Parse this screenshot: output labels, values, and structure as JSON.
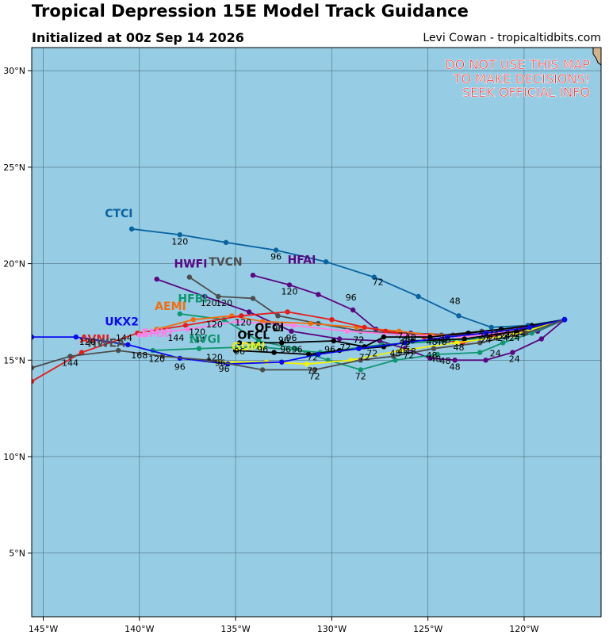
{
  "header": {
    "title": "Tropical Depression 15E Model Track Guidance",
    "subtitle": "Initialized at 00z Sep 14 2026",
    "credit": "Levi Cowan - tropicaltidbits.com"
  },
  "warning": {
    "lines": [
      "DO NOT USE THIS MAP",
      "TO MAKE DECISIONS!",
      "SEEK OFFICIAL INFO"
    ],
    "color": "#ff2222"
  },
  "axes": {
    "lon_range": [
      -145.6,
      -116.0
    ],
    "lat_range": [
      1.7,
      31.2
    ],
    "x_ticks": [
      {
        "lon": -145,
        "label": "145°W"
      },
      {
        "lon": -140,
        "label": "140°W"
      },
      {
        "lon": -135,
        "label": "135°W"
      },
      {
        "lon": -130,
        "label": "130°W"
      },
      {
        "lon": -125,
        "label": "125°W"
      },
      {
        "lon": -120,
        "label": "120°W"
      }
    ],
    "y_ticks": [
      {
        "lat": 5,
        "label": "5°N"
      },
      {
        "lat": 10,
        "label": "10°N"
      },
      {
        "lat": 15,
        "label": "15°N"
      },
      {
        "lat": 20,
        "label": "20°N"
      },
      {
        "lat": 25,
        "label": "25°N"
      },
      {
        "lat": 30,
        "label": "30°N"
      }
    ],
    "ocean_color": "#96cde4",
    "grid": true
  },
  "storm_origin": {
    "lon": -117.9,
    "lat": 17.1
  },
  "tracks": [
    {
      "name": "CTCI",
      "color": "#0a63a0",
      "points": [
        [
          -117.9,
          17.1
        ],
        [
          -119.8,
          16.8
        ],
        [
          -121.7,
          16.7
        ],
        [
          -123.4,
          17.3
        ],
        [
          -125.5,
          18.3
        ],
        [
          -127.8,
          19.3
        ],
        [
          -130.3,
          20.1
        ],
        [
          -132.9,
          20.7
        ],
        [
          -135.5,
          21.1
        ],
        [
          -137.9,
          21.5
        ],
        [
          -140.4,
          21.8
        ]
      ],
      "labels": [
        {
          "lon": -123.6,
          "lat": 17.9,
          "text": "48"
        },
        {
          "lon": -127.6,
          "lat": 18.9,
          "text": "72"
        },
        {
          "lon": -132.9,
          "lat": 20.2,
          "text": "96"
        },
        {
          "lon": -137.9,
          "lat": 21.0,
          "text": "120"
        }
      ],
      "name_pos": [
        -141.8,
        22.4
      ]
    },
    {
      "name": "HWFI",
      "color": "#5c0680",
      "points": [
        [
          -117.9,
          17.1
        ],
        [
          -119.3,
          16.5
        ],
        [
          -121.3,
          16.4
        ],
        [
          -123.7,
          16.3
        ],
        [
          -125.9,
          16.4
        ],
        [
          -127.7,
          16.6
        ],
        [
          -128.9,
          17.6
        ],
        [
          -130.7,
          18.4
        ],
        [
          -132.2,
          18.9
        ],
        [
          -134.1,
          19.4
        ]
      ],
      "labels": [
        {
          "lon": -129.0,
          "lat": 18.1,
          "text": "96"
        },
        {
          "lon": -132.2,
          "lat": 18.4,
          "text": "120"
        }
      ],
      "name_pos": [
        -138.2,
        19.8
      ]
    },
    {
      "name": "HFAI",
      "color": "#5c0680",
      "points": [
        [
          -117.9,
          17.1
        ],
        [
          -119.1,
          16.1
        ],
        [
          -120.6,
          15.4
        ],
        [
          -122.0,
          15.0
        ],
        [
          -123.6,
          15.0
        ],
        [
          -124.9,
          15.1
        ],
        [
          -126.2,
          15.6
        ],
        [
          -127.5,
          16.0
        ],
        [
          -129.6,
          16.1
        ],
        [
          -132.1,
          16.5
        ],
        [
          -134.3,
          17.5
        ],
        [
          -136.6,
          18.3
        ],
        [
          -139.1,
          19.2
        ]
      ],
      "labels": [
        {
          "lon": -120.5,
          "lat": 14.9,
          "text": "24"
        },
        {
          "lon": -123.6,
          "lat": 14.5,
          "text": "48"
        },
        {
          "lon": -126.0,
          "lat": 15.1,
          "text": "72"
        },
        {
          "lon": -132.1,
          "lat": 16.0,
          "text": "96"
        },
        {
          "lon": -136.4,
          "lat": 17.8,
          "text": "120"
        }
      ],
      "name_pos": [
        -132.3,
        20.0
      ]
    },
    {
      "name": "TVCN",
      "color": "#4d4d4d",
      "points": [
        [
          -117.9,
          17.1
        ],
        [
          -120.1,
          16.7
        ],
        [
          -122.2,
          16.5
        ],
        [
          -124.3,
          16.3
        ],
        [
          -126.6,
          16.4
        ],
        [
          -128.5,
          16.5
        ],
        [
          -130.7,
          16.9
        ],
        [
          -132.8,
          17.3
        ],
        [
          -134.1,
          18.2
        ],
        [
          -135.9,
          18.3
        ],
        [
          -137.4,
          19.3
        ]
      ],
      "labels": [
        {
          "lon": -135.6,
          "lat": 17.8,
          "text": "120"
        }
      ],
      "name_pos": [
        -136.4,
        19.9
      ]
    },
    {
      "name": "HFBI",
      "color": "#0f9670",
      "points": [
        [
          -117.9,
          17.1
        ],
        [
          -119.6,
          16.4
        ],
        [
          -121.1,
          15.9
        ],
        [
          -122.3,
          15.4
        ],
        [
          -124.5,
          15.3
        ],
        [
          -126.7,
          15.0
        ],
        [
          -128.5,
          14.5
        ],
        [
          -130.2,
          15.0
        ],
        [
          -131.9,
          15.6
        ],
        [
          -133.8,
          16.0
        ],
        [
          -135.6,
          17.1
        ],
        [
          -137.9,
          17.4
        ]
      ],
      "labels": [
        {
          "lon": -128.5,
          "lat": 14.0,
          "text": "72"
        }
      ],
      "name_pos": [
        -138.0,
        18.0
      ]
    },
    {
      "name": "AEMI",
      "color": "#f26d0f",
      "points": [
        [
          -117.9,
          17.1
        ],
        [
          -120.4,
          16.6
        ],
        [
          -122.7,
          16.3
        ],
        [
          -124.8,
          16.3
        ],
        [
          -126.5,
          16.5
        ],
        [
          -128.7,
          16.7
        ],
        [
          -131.1,
          16.9
        ],
        [
          -133.6,
          17.0
        ],
        [
          -135.2,
          17.3
        ],
        [
          -137.2,
          17.1
        ],
        [
          -139.1,
          16.6
        ]
      ],
      "labels": [
        {
          "lon": -132.8,
          "lat": 16.5,
          "text": "96"
        },
        {
          "lon": -134.6,
          "lat": 16.8,
          "text": "120"
        }
      ],
      "name_pos": [
        -139.2,
        17.6
      ]
    },
    {
      "name": "AVNI",
      "color": "#e61c1c",
      "points": [
        [
          -117.9,
          17.1
        ],
        [
          -120.1,
          16.6
        ],
        [
          -121.8,
          16.2
        ],
        [
          -123.2,
          15.9
        ],
        [
          -125.2,
          16.2
        ],
        [
          -127.2,
          16.5
        ],
        [
          -128.3,
          16.7
        ],
        [
          -130.0,
          17.1
        ],
        [
          -132.3,
          17.5
        ],
        [
          -134.7,
          17.3
        ],
        [
          -137.6,
          16.8
        ],
        [
          -140.1,
          16.4
        ],
        [
          -143.0,
          15.4
        ],
        [
          -145.6,
          13.9
        ]
      ],
      "labels": [
        {
          "lon": -137.0,
          "lat": 16.3,
          "text": "120"
        }
      ],
      "name_pos": [
        -143.1,
        15.9
      ]
    },
    {
      "name": "EMXI",
      "color": "#ff7ee8",
      "points": [
        [
          -117.9,
          17.1
        ],
        [
          -120.5,
          16.5
        ],
        [
          -123.2,
          16.2
        ],
        [
          -126.2,
          16.3
        ],
        [
          -129.2,
          16.5
        ],
        [
          -132.0,
          16.8
        ],
        [
          -134.9,
          17.0
        ],
        [
          -137.5,
          16.6
        ],
        [
          -140.0,
          16.3
        ]
      ],
      "labels": [],
      "name_pos": [
        -139.9,
        16.2
      ]
    },
    {
      "name": "NVGI",
      "color": "#0f9670",
      "points": [
        [
          -117.9,
          17.1
        ],
        [
          -121.0,
          16.2
        ],
        [
          -124.2,
          16.0
        ],
        [
          -127.4,
          15.8
        ],
        [
          -130.6,
          15.4
        ],
        [
          -133.9,
          15.7
        ],
        [
          -136.9,
          15.6
        ],
        [
          -139.3,
          15.5
        ]
      ],
      "labels": [
        {
          "lon": -137.0,
          "lat": 15.9,
          "text": "144"
        }
      ],
      "name_pos": [
        -137.4,
        15.9
      ]
    },
    {
      "name": "OFCL",
      "color": "#000000",
      "points": [
        [
          -117.9,
          17.1
        ],
        [
          -119.6,
          16.8
        ],
        [
          -121.2,
          16.6
        ],
        [
          -122.9,
          16.4
        ],
        [
          -124.9,
          16.2
        ],
        [
          -127.3,
          16.2
        ],
        [
          -128.3,
          15.7
        ],
        [
          -129.9,
          16.0
        ],
        [
          -132.6,
          15.9
        ],
        [
          -134.8,
          15.9
        ]
      ],
      "labels": [
        {
          "lon": -128.6,
          "lat": 15.9,
          "text": "72"
        },
        {
          "lon": -132.4,
          "lat": 15.4,
          "text": "96"
        }
      ],
      "name_pos": [
        -134.9,
        16.1
      ]
    },
    {
      "name": "OFCI",
      "color": "#000000",
      "points": [
        [
          -117.9,
          17.1
        ],
        [
          -120.4,
          16.5
        ],
        [
          -123.1,
          16.1
        ],
        [
          -125.8,
          16.0
        ],
        [
          -127.3,
          15.7
        ],
        [
          -129.6,
          15.5
        ],
        [
          -131.2,
          15.3
        ],
        [
          -133.0,
          15.4
        ],
        [
          -135.0,
          15.5
        ]
      ],
      "labels": [
        {
          "lon": -131.8,
          "lat": 15.4,
          "text": "96"
        }
      ],
      "name_pos": [
        -134.0,
        16.5
      ]
    },
    {
      "name": "GDMI",
      "color": "#f0f00a",
      "points": [
        [
          -117.9,
          17.1
        ],
        [
          -120.6,
          16.3
        ],
        [
          -123.5,
          15.9
        ],
        [
          -126.4,
          15.5
        ],
        [
          -129.0,
          15.0
        ],
        [
          -131.3,
          14.8
        ],
        [
          -133.4,
          14.9
        ],
        [
          -135.9,
          14.9
        ]
      ],
      "labels": [
        {
          "lon": -131.0,
          "lat": 14.3,
          "text": "72"
        }
      ],
      "name_pos": [
        -135.2,
        15.5
      ]
    },
    {
      "name": "UKX2",
      "color": "#0a0af0",
      "points": [
        [
          -117.9,
          17.1
        ],
        [
          -119.7,
          16.7
        ],
        [
          -122.0,
          16.4
        ],
        [
          -124.0,
          16.2
        ],
        [
          -126.2,
          15.9
        ],
        [
          -128.6,
          15.6
        ],
        [
          -130.7,
          15.3
        ],
        [
          -132.6,
          14.9
        ],
        [
          -135.4,
          14.8
        ],
        [
          -137.9,
          15.1
        ],
        [
          -140.6,
          15.8
        ],
        [
          -143.3,
          16.2
        ],
        [
          -145.6,
          16.2
        ]
      ],
      "labels": [
        {
          "lon": -137.9,
          "lat": 14.5,
          "text": "96"
        }
      ],
      "name_pos": [
        -141.8,
        16.8
      ]
    },
    {
      "name": "HWEA",
      "color": "#4d4d4d",
      "points": [
        [
          -117.9,
          17.1
        ],
        [
          -119.9,
          16.4
        ],
        [
          -122.3,
          15.9
        ],
        [
          -124.7,
          15.6
        ],
        [
          -126.8,
          15.2
        ],
        [
          -128.5,
          15.0
        ],
        [
          -130.9,
          14.5
        ],
        [
          -133.6,
          14.5
        ],
        [
          -136.4,
          15.0
        ],
        [
          -138.8,
          15.2
        ],
        [
          -141.1,
          15.5
        ],
        [
          -143.6,
          15.2
        ],
        [
          -145.6,
          14.6
        ]
      ],
      "labels": [
        {
          "lon": -130.9,
          "lat": 14.0,
          "text": "72"
        },
        {
          "lon": -135.6,
          "lat": 14.4,
          "text": "96"
        },
        {
          "lon": -143.6,
          "lat": 14.7,
          "text": "144"
        }
      ],
      "name_pos": [
        -142.7,
        15.7
      ]
    }
  ],
  "extra_labels": [
    {
      "lon": -140.8,
      "lat": 16.0,
      "text": "144"
    },
    {
      "lon": -140.0,
      "lat": 15.1,
      "text": "168"
    },
    {
      "lon": -139.1,
      "lat": 14.9,
      "text": "120"
    },
    {
      "lon": -136.1,
      "lat": 15.0,
      "text": "120"
    },
    {
      "lon": -135.8,
      "lat": 14.7,
      "text": "96"
    },
    {
      "lon": -133.6,
      "lat": 15.4,
      "text": "96"
    },
    {
      "lon": -132.5,
      "lat": 15.9,
      "text": "96"
    },
    {
      "lon": -130.1,
      "lat": 15.4,
      "text": "96"
    },
    {
      "lon": -142.7,
      "lat": 15.8,
      "text": "120"
    },
    {
      "lon": -128.6,
      "lat": 15.9,
      "text": "72"
    },
    {
      "lon": -127.9,
      "lat": 15.2,
      "text": "72"
    },
    {
      "lon": -128.3,
      "lat": 15.0,
      "text": "72"
    },
    {
      "lon": -129.3,
      "lat": 15.5,
      "text": "72"
    },
    {
      "lon": -131.0,
      "lat": 15.0,
      "text": "72"
    },
    {
      "lon": -126.3,
      "lat": 15.3,
      "text": "48"
    },
    {
      "lon": -126.7,
      "lat": 15.2,
      "text": "48"
    },
    {
      "lon": -125.9,
      "lat": 15.3,
      "text": "48"
    },
    {
      "lon": -126.2,
      "lat": 15.8,
      "text": "48"
    },
    {
      "lon": -125.9,
      "lat": 16.0,
      "text": "48"
    },
    {
      "lon": -124.8,
      "lat": 15.8,
      "text": "48"
    },
    {
      "lon": -124.3,
      "lat": 15.8,
      "text": "48"
    },
    {
      "lon": -124.1,
      "lat": 15.9,
      "text": "48"
    },
    {
      "lon": -123.4,
      "lat": 15.5,
      "text": "48"
    },
    {
      "lon": -124.8,
      "lat": 15.1,
      "text": "48"
    },
    {
      "lon": -124.1,
      "lat": 14.8,
      "text": "48"
    },
    {
      "lon": -124.6,
      "lat": 14.9,
      "text": "48"
    },
    {
      "lon": -126.2,
      "lat": 15.7,
      "text": "72"
    },
    {
      "lon": -126.3,
      "lat": 16.1,
      "text": "72"
    },
    {
      "lon": -121.6,
      "lat": 16.0,
      "text": "24"
    },
    {
      "lon": -120.5,
      "lat": 16.0,
      "text": "24"
    },
    {
      "lon": -121.1,
      "lat": 16.0,
      "text": "24"
    },
    {
      "lon": -122.0,
      "lat": 15.9,
      "text": "24"
    },
    {
      "lon": -122.1,
      "lat": 16.1,
      "text": "24"
    },
    {
      "lon": -121.6,
      "lat": 16.2,
      "text": "24"
    },
    {
      "lon": -120.7,
      "lat": 16.2,
      "text": "24"
    },
    {
      "lon": -121.0,
      "lat": 16.1,
      "text": "24"
    },
    {
      "lon": -120.2,
      "lat": 16.2,
      "text": "24"
    },
    {
      "lon": -121.5,
      "lat": 15.2,
      "text": "24"
    },
    {
      "lon": -136.1,
      "lat": 16.7,
      "text": "120"
    },
    {
      "lon": -138.1,
      "lat": 16.0,
      "text": "144"
    },
    {
      "lon": -134.8,
      "lat": 15.3,
      "text": "96"
    }
  ]
}
